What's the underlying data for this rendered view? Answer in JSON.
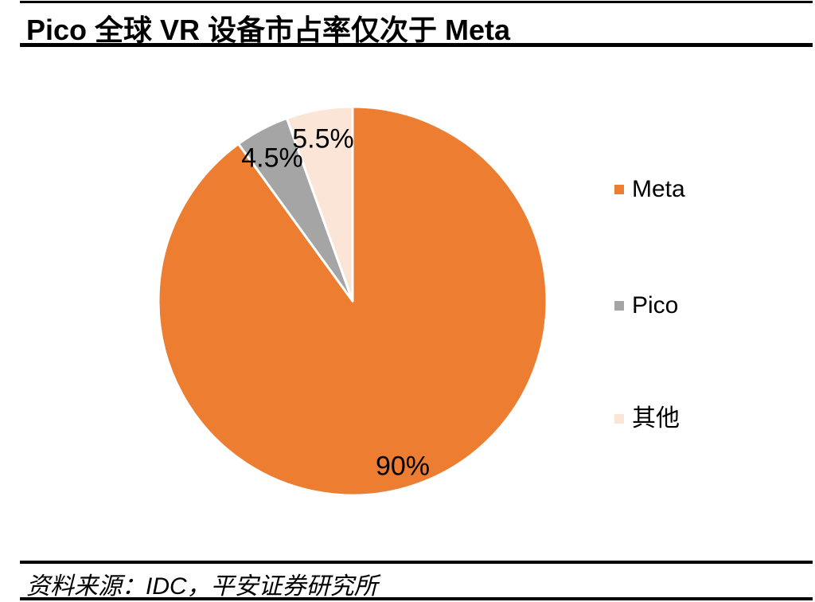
{
  "header": {
    "title": "Pico 全球 VR 设备市占率仅次于 Meta"
  },
  "chart_data": {
    "type": "pie",
    "title": "Pico 全球 VR 设备市占率仅次于 Meta",
    "slices": [
      {
        "name": "Meta",
        "value": 90,
        "label": "90%",
        "color": "#ED7D31"
      },
      {
        "name": "Pico",
        "value": 4.5,
        "label": "4.5%",
        "color": "#A5A5A5"
      },
      {
        "name": "其他",
        "value": 5.5,
        "label": "5.5%",
        "color": "#FBE5D6"
      }
    ],
    "start_angle_deg": 0,
    "direction": "clockwise",
    "legend_position": "right",
    "slice_border_color": "#FFFFFF",
    "label_color": "#000000"
  },
  "footer": {
    "source": "资料来源：IDC，平安证券研究所"
  }
}
